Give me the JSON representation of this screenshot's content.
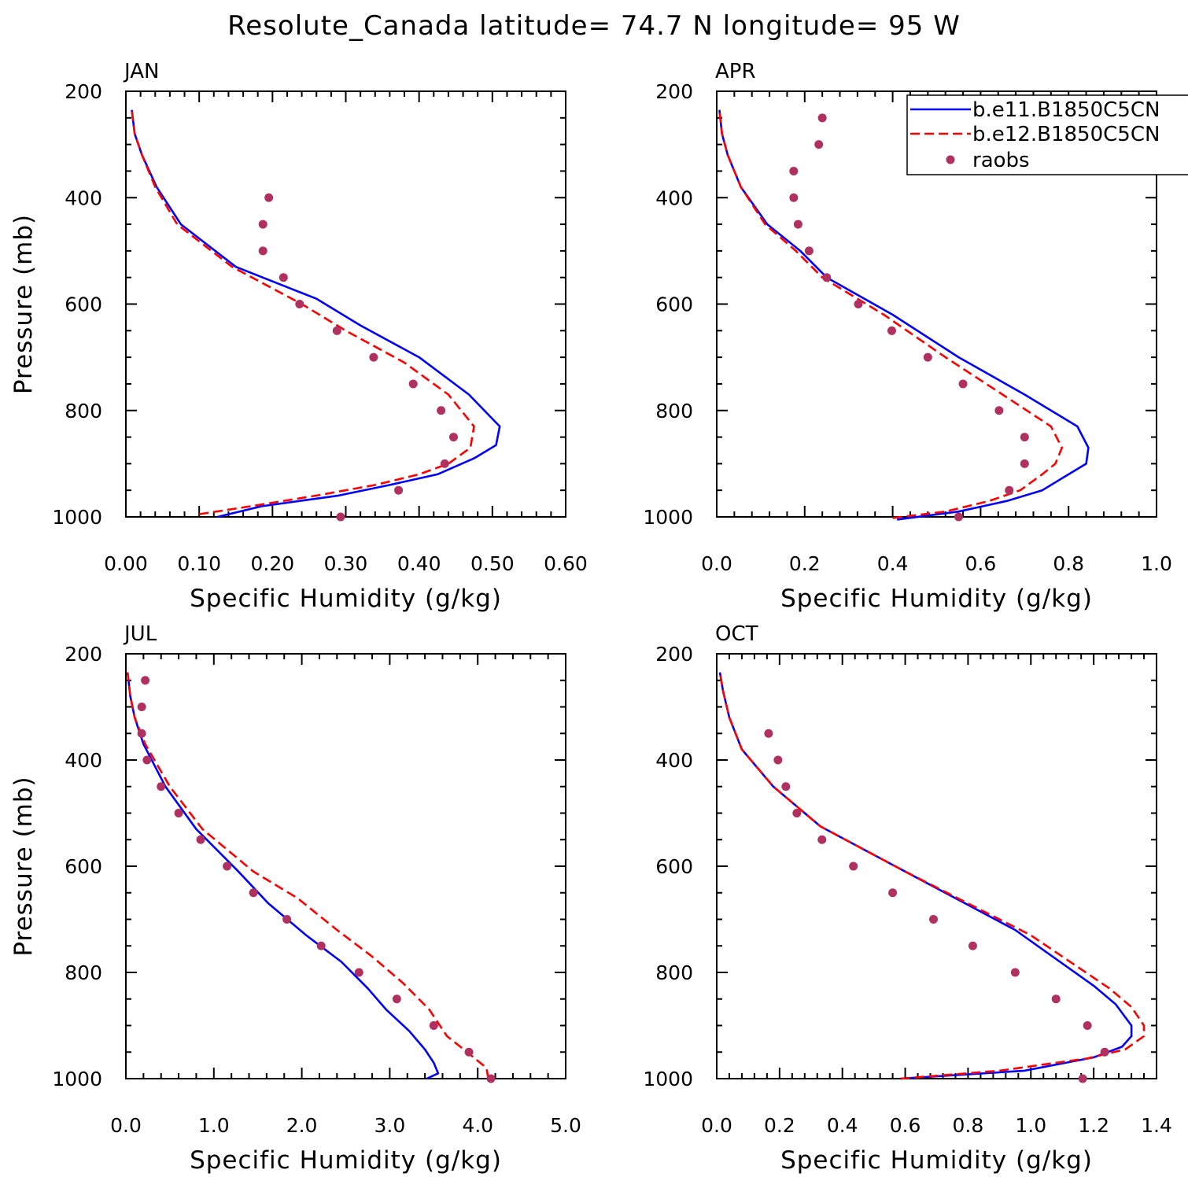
{
  "figure": {
    "title": "Resolute_Canada  latitude= 74.7 N longitude= 95 W"
  },
  "colors": {
    "model1": "#0000ff",
    "model2": "#ff0000",
    "obs": "#b03060",
    "axes": "#000000"
  },
  "legend": {
    "entries": [
      "b.e11.B1850C5CN",
      "b.e12.B1850C5CN",
      "raobs"
    ]
  },
  "chart_data": [
    {
      "type": "line",
      "title": "JAN",
      "xlabel": "Specific Humidity (g/kg)",
      "ylabel": "Pressure (mb)",
      "xlim": [
        0,
        0.6
      ],
      "ylim": [
        1000,
        200
      ],
      "xticks": [
        "0.00",
        "0.10",
        "0.20",
        "0.30",
        "0.40",
        "0.50",
        "0.60"
      ],
      "yticks": [
        "200",
        "400",
        "600",
        "800",
        "1000"
      ],
      "series": [
        {
          "name": "b.e11.B1850C5CN",
          "style": "solid",
          "x": [
            0.125,
            0.185,
            0.29,
            0.36,
            0.425,
            0.475,
            0.505,
            0.51,
            0.468,
            0.4,
            0.32,
            0.26,
            0.15,
            0.075,
            0.042,
            0.022,
            0.012,
            0.008
          ],
          "y": [
            1000,
            980,
            960,
            940,
            920,
            890,
            865,
            830,
            770,
            700,
            640,
            590,
            530,
            450,
            380,
            320,
            280,
            235
          ]
        },
        {
          "name": "b.e12.B1850C5CN",
          "style": "dashed",
          "x": [
            0.1,
            0.17,
            0.26,
            0.34,
            0.4,
            0.44,
            0.47,
            0.475,
            0.44,
            0.38,
            0.3,
            0.24,
            0.145,
            0.07,
            0.04,
            0.022,
            0.012,
            0.008
          ],
          "y": [
            995,
            980,
            960,
            940,
            920,
            900,
            870,
            830,
            770,
            710,
            650,
            600,
            530,
            450,
            380,
            320,
            280,
            235
          ]
        },
        {
          "name": "raobs",
          "style": "markers",
          "x": [
            0.195,
            0.187,
            0.187,
            0.215,
            0.237,
            0.288,
            0.338,
            0.392,
            0.43,
            0.447,
            0.435,
            0.372,
            0.293
          ],
          "y": [
            400,
            450,
            500,
            550,
            600,
            650,
            700,
            750,
            800,
            850,
            900,
            950,
            1000
          ]
        }
      ]
    },
    {
      "type": "line",
      "title": "APR",
      "xlabel": "Specific Humidity (g/kg)",
      "ylabel": "",
      "xlim": [
        0,
        1.0
      ],
      "ylim": [
        1000,
        200
      ],
      "xticks": [
        "0.0",
        "0.2",
        "0.4",
        "0.6",
        "0.8",
        "1.0"
      ],
      "yticks": [
        "200",
        "400",
        "600",
        "800",
        "1000"
      ],
      "series": [
        {
          "name": "b.e11.B1850C5CN",
          "style": "solid",
          "x": [
            0.41,
            0.55,
            0.66,
            0.74,
            0.8,
            0.84,
            0.845,
            0.82,
            0.7,
            0.55,
            0.4,
            0.25,
            0.19,
            0.115,
            0.055,
            0.025,
            0.012,
            0.006
          ],
          "y": [
            1005,
            990,
            970,
            950,
            920,
            900,
            870,
            830,
            770,
            700,
            620,
            550,
            500,
            450,
            380,
            320,
            280,
            235
          ]
        },
        {
          "name": "b.e12.B1850C5CN",
          "style": "dashed",
          "x": [
            0.4,
            0.52,
            0.62,
            0.69,
            0.74,
            0.77,
            0.785,
            0.76,
            0.65,
            0.52,
            0.38,
            0.24,
            0.18,
            0.11,
            0.055,
            0.025,
            0.012,
            0.006
          ],
          "y": [
            1002,
            990,
            970,
            950,
            920,
            900,
            870,
            830,
            770,
            700,
            620,
            550,
            500,
            450,
            380,
            320,
            280,
            235
          ]
        },
        {
          "name": "raobs",
          "style": "markers",
          "x": [
            0.24,
            0.232,
            0.175,
            0.175,
            0.185,
            0.21,
            0.25,
            0.322,
            0.398,
            0.48,
            0.56,
            0.642,
            0.7,
            0.7,
            0.665,
            0.55
          ],
          "y": [
            250,
            300,
            350,
            400,
            450,
            500,
            550,
            600,
            650,
            700,
            750,
            800,
            850,
            900,
            950,
            1000
          ]
        }
      ]
    },
    {
      "type": "line",
      "title": "JUL",
      "xlabel": "Specific Humidity (g/kg)",
      "ylabel": "Pressure (mb)",
      "xlim": [
        0,
        5.0
      ],
      "ylim": [
        1000,
        200
      ],
      "xticks": [
        "0.0",
        "1.0",
        "2.0",
        "3.0",
        "4.0",
        "5.0"
      ],
      "yticks": [
        "200",
        "400",
        "600",
        "800",
        "1000"
      ],
      "series": [
        {
          "name": "b.e11.B1850C5CN",
          "style": "solid",
          "x": [
            3.42,
            3.55,
            3.5,
            3.4,
            3.22,
            2.96,
            2.75,
            2.45,
            2.05,
            1.62,
            1.28,
            0.8,
            0.45,
            0.2,
            0.1,
            0.05,
            0.02
          ],
          "y": [
            1000,
            990,
            970,
            945,
            910,
            870,
            830,
            780,
            730,
            670,
            610,
            530,
            450,
            370,
            320,
            280,
            235
          ]
        },
        {
          "name": "b.e12.B1850C5CN",
          "style": "dashed",
          "x": [
            4.12,
            4.1,
            3.88,
            3.65,
            3.45,
            3.15,
            2.8,
            2.4,
            1.95,
            1.45,
            0.87,
            0.5,
            0.22,
            0.1,
            0.05,
            0.02
          ],
          "y": [
            1000,
            980,
            950,
            920,
            870,
            820,
            770,
            720,
            660,
            610,
            530,
            450,
            370,
            320,
            280,
            235
          ]
        },
        {
          "name": "raobs",
          "style": "markers",
          "x": [
            0.22,
            0.18,
            0.18,
            0.24,
            0.4,
            0.6,
            0.85,
            1.15,
            1.45,
            1.83,
            2.22,
            2.65,
            3.08,
            3.5,
            3.9,
            4.15
          ],
          "y": [
            250,
            300,
            350,
            400,
            450,
            500,
            550,
            600,
            650,
            700,
            750,
            800,
            850,
            900,
            950,
            1000
          ]
        }
      ]
    },
    {
      "type": "line",
      "title": "OCT",
      "xlabel": "Specific Humidity (g/kg)",
      "ylabel": "",
      "xlim": [
        0,
        1.4
      ],
      "ylim": [
        1000,
        200
      ],
      "xticks": [
        "0.0",
        "0.2",
        "0.4",
        "0.6",
        "0.8",
        "1.0",
        "1.2",
        "1.4"
      ],
      "yticks": [
        "200",
        "400",
        "600",
        "800",
        "1000"
      ],
      "series": [
        {
          "name": "b.e11.B1850C5CN",
          "style": "solid",
          "x": [
            0.585,
            0.98,
            1.2,
            1.29,
            1.32,
            1.32,
            1.27,
            1.2,
            0.95,
            0.6,
            0.33,
            0.18,
            0.08,
            0.04,
            0.02,
            0.01
          ],
          "y": [
            1000,
            985,
            960,
            940,
            920,
            900,
            860,
            825,
            720,
            610,
            525,
            450,
            380,
            320,
            270,
            235
          ]
        },
        {
          "name": "b.e12.B1850C5CN",
          "style": "dashed",
          "x": [
            0.585,
            0.9,
            1.18,
            1.3,
            1.36,
            1.36,
            1.32,
            1.25,
            1.0,
            0.6,
            0.33,
            0.18,
            0.08,
            0.04,
            0.02,
            0.01
          ],
          "y": [
            1000,
            985,
            962,
            945,
            920,
            900,
            865,
            830,
            730,
            610,
            525,
            450,
            380,
            320,
            270,
            235
          ]
        },
        {
          "name": "raobs",
          "style": "markers",
          "x": [
            0.165,
            0.195,
            0.22,
            0.255,
            0.335,
            0.435,
            0.56,
            0.69,
            0.815,
            0.95,
            1.08,
            1.18,
            1.235,
            1.165
          ],
          "y": [
            350,
            400,
            450,
            500,
            550,
            600,
            650,
            700,
            750,
            800,
            850,
            900,
            950,
            1000
          ]
        }
      ]
    }
  ]
}
